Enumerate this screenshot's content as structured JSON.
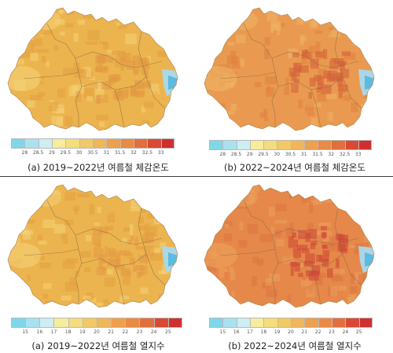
{
  "panels": [
    {
      "caption": "(a) 2019~2022년 여름철 체감온도",
      "index": "체감온도",
      "legend_labels": [
        "28",
        "28.5",
        "29",
        "29.5",
        "30",
        "30.5",
        "31",
        "31.5",
        "32",
        "32.5",
        "33"
      ],
      "dominant_level": "30–31",
      "hotspot_level": "31–31.5",
      "colors": {
        "base": "#ecb44f",
        "dark": "#e49f3f",
        "light": "#f5d276",
        "hot": "#e39a42",
        "coast": "#a9d9ec",
        "coast_deep": "#52b8e0"
      }
    },
    {
      "caption": "(b) 2022~2024년 여름철 체감온도",
      "index": "체감온도",
      "legend_labels": [
        "28",
        "28.5",
        "29",
        "29.5",
        "30",
        "30.5",
        "31",
        "31.5",
        "32",
        "32.5",
        "33"
      ],
      "dominant_level": "31–32",
      "hotspot_level": "32–32.5",
      "colors": {
        "base": "#e99a50",
        "dark": "#e0823f",
        "light": "#f0b566",
        "hot": "#d5623a",
        "coast": "#a9d9ec",
        "coast_deep": "#52b8e0"
      }
    },
    {
      "caption": "(a) 2019~2022년 여름철 열지수",
      "index": "열지수",
      "legend_labels": [
        "15",
        "16",
        "17",
        "18",
        "19",
        "20",
        "21",
        "22",
        "23",
        "24",
        "25"
      ],
      "dominant_level": "20–21",
      "hotspot_level": "21–22",
      "colors": {
        "base": "#ecb44f",
        "dark": "#e49f3f",
        "light": "#f5d276",
        "hot": "#e49b45",
        "coast": "#a9d9ec",
        "coast_deep": "#52b8e0"
      }
    },
    {
      "caption": "(b) 2022~2024년 여름철 열지수",
      "index": "열지수",
      "legend_labels": [
        "15",
        "16",
        "17",
        "18",
        "19",
        "20",
        "21",
        "22",
        "23",
        "24",
        "25"
      ],
      "dominant_level": "22–23",
      "hotspot_level": "24–25",
      "colors": {
        "base": "#e5884a",
        "dark": "#dc7442",
        "light": "#eda35c",
        "hot": "#cf4a37",
        "coast": "#a9d9ec",
        "coast_deep": "#52b8e0"
      }
    }
  ],
  "legend_colors": [
    "#7fd7ea",
    "#a9e2ef",
    "#cdeef3",
    "#f7ec9c",
    "#f5dc7c",
    "#f2c964",
    "#efb65a",
    "#eda04e",
    "#e98a45",
    "#e16f3d",
    "#d94a34",
    "#d02f2f"
  ]
}
